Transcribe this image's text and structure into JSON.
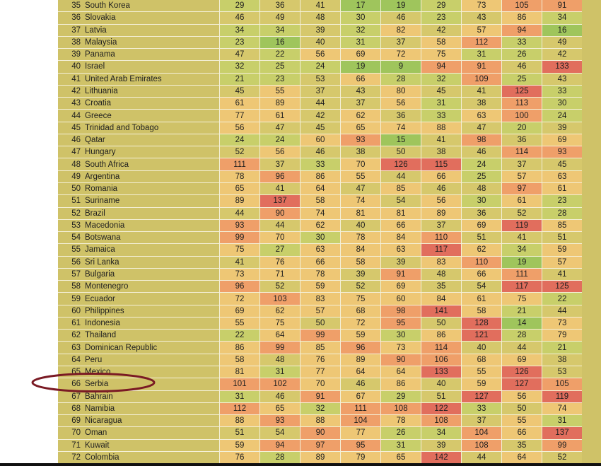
{
  "colors": {
    "low": "#9fc55c",
    "light": "#c8cf6a",
    "mid": "#d6c86c",
    "high": "#eec775",
    "higher": "#ef9f69",
    "top": "#e16e5d",
    "circle": "#7a1a24"
  },
  "rows": [
    {
      "rank": "35",
      "country": "South Korea",
      "values": [
        29,
        36,
        41,
        17,
        19,
        29,
        73,
        105,
        91
      ]
    },
    {
      "rank": "36",
      "country": "Slovakia",
      "values": [
        46,
        49,
        48,
        30,
        46,
        23,
        43,
        86,
        34
      ]
    },
    {
      "rank": "37",
      "country": "Latvia",
      "values": [
        34,
        34,
        39,
        32,
        82,
        42,
        57,
        94,
        16
      ]
    },
    {
      "rank": "38",
      "country": "Malaysia",
      "values": [
        23,
        16,
        40,
        31,
        37,
        58,
        112,
        33,
        49
      ]
    },
    {
      "rank": "39",
      "country": "Panama",
      "values": [
        47,
        22,
        56,
        69,
        72,
        75,
        31,
        26,
        42
      ]
    },
    {
      "rank": "40",
      "country": "Israel",
      "values": [
        32,
        25,
        24,
        19,
        9,
        94,
        91,
        46,
        133
      ]
    },
    {
      "rank": "41",
      "country": "United Arab Emirates",
      "values": [
        21,
        23,
        53,
        66,
        28,
        32,
        109,
        25,
        43
      ]
    },
    {
      "rank": "42",
      "country": "Lithuania",
      "values": [
        45,
        55,
        37,
        43,
        80,
        45,
        41,
        125,
        33
      ]
    },
    {
      "rank": "43",
      "country": "Croatia",
      "values": [
        61,
        89,
        44,
        37,
        56,
        31,
        38,
        113,
        30
      ]
    },
    {
      "rank": "44",
      "country": "Greece",
      "values": [
        77,
        61,
        42,
        62,
        36,
        33,
        63,
        100,
        24
      ]
    },
    {
      "rank": "45",
      "country": "Trinidad and Tobago",
      "values": [
        56,
        47,
        45,
        65,
        74,
        88,
        47,
        20,
        39
      ]
    },
    {
      "rank": "46",
      "country": "Qatar",
      "values": [
        24,
        24,
        60,
        93,
        15,
        41,
        98,
        36,
        69
      ]
    },
    {
      "rank": "47",
      "country": "Hungary",
      "values": [
        52,
        56,
        46,
        38,
        50,
        38,
        46,
        114,
        93
      ]
    },
    {
      "rank": "48",
      "country": "South Africa",
      "values": [
        111,
        37,
        33,
        70,
        126,
        115,
        24,
        37,
        45
      ]
    },
    {
      "rank": "49",
      "country": "Argentina",
      "values": [
        78,
        96,
        86,
        55,
        44,
        66,
        25,
        57,
        63
      ]
    },
    {
      "rank": "50",
      "country": "Romania",
      "values": [
        65,
        41,
        64,
        47,
        85,
        46,
        48,
        97,
        61
      ]
    },
    {
      "rank": "51",
      "country": "Suriname",
      "values": [
        89,
        137,
        58,
        74,
        54,
        56,
        30,
        61,
        23
      ]
    },
    {
      "rank": "52",
      "country": "Brazil",
      "values": [
        44,
        90,
        74,
        81,
        81,
        89,
        36,
        52,
        28
      ]
    },
    {
      "rank": "53",
      "country": "Macedonia",
      "values": [
        93,
        44,
        62,
        40,
        66,
        37,
        69,
        119,
        85
      ]
    },
    {
      "rank": "54",
      "country": "Botswana",
      "values": [
        99,
        70,
        30,
        78,
        84,
        110,
        51,
        41,
        51
      ]
    },
    {
      "rank": "55",
      "country": "Jamaica",
      "values": [
        75,
        27,
        63,
        84,
        63,
        117,
        62,
        34,
        59
      ]
    },
    {
      "rank": "56",
      "country": "Sri Lanka",
      "values": [
        41,
        76,
        66,
        58,
        39,
        83,
        110,
        19,
        57
      ]
    },
    {
      "rank": "57",
      "country": "Bulgaria",
      "values": [
        73,
        71,
        78,
        39,
        91,
        48,
        66,
        111,
        41
      ]
    },
    {
      "rank": "58",
      "country": "Montenegro",
      "values": [
        96,
        52,
        59,
        52,
        69,
        35,
        54,
        117,
        125
      ]
    },
    {
      "rank": "59",
      "country": "Ecuador",
      "values": [
        72,
        103,
        83,
        75,
        60,
        84,
        61,
        75,
        22
      ]
    },
    {
      "rank": "60",
      "country": "Philippines",
      "values": [
        69,
        62,
        57,
        68,
        98,
        141,
        58,
        21,
        44
      ]
    },
    {
      "rank": "61",
      "country": "Indonesia",
      "values": [
        55,
        75,
        50,
        72,
        95,
        50,
        128,
        14,
        73
      ]
    },
    {
      "rank": "62",
      "country": "Thailand",
      "values": [
        22,
        64,
        99,
        59,
        30,
        86,
        121,
        28,
        79
      ]
    },
    {
      "rank": "63",
      "country": "Dominican Republic",
      "values": [
        86,
        99,
        85,
        96,
        73,
        114,
        40,
        44,
        21
      ]
    },
    {
      "rank": "64",
      "country": "Peru",
      "values": [
        58,
        48,
        76,
        89,
        90,
        106,
        68,
        69,
        38
      ]
    },
    {
      "rank": "65",
      "country": "Mexico",
      "values": [
        81,
        31,
        77,
        64,
        64,
        133,
        55,
        126,
        53
      ]
    },
    {
      "rank": "66",
      "country": "Serbia",
      "values": [
        101,
        102,
        70,
        46,
        86,
        40,
        59,
        127,
        105
      ]
    },
    {
      "rank": "67",
      "country": "Bahrain",
      "values": [
        31,
        46,
        91,
        67,
        29,
        51,
        127,
        56,
        119
      ]
    },
    {
      "rank": "68",
      "country": "Namibia",
      "values": [
        112,
        65,
        32,
        111,
        108,
        122,
        33,
        50,
        74
      ]
    },
    {
      "rank": "69",
      "country": "Nicaragua",
      "values": [
        88,
        93,
        88,
        104,
        78,
        108,
        37,
        55,
        31
      ]
    },
    {
      "rank": "70",
      "country": "Oman",
      "values": [
        51,
        54,
        90,
        77,
        26,
        34,
        104,
        66,
        137
      ]
    },
    {
      "rank": "71",
      "country": "Kuwait",
      "values": [
        59,
        94,
        97,
        95,
        31,
        39,
        108,
        35,
        99
      ]
    },
    {
      "rank": "72",
      "country": "Colombia",
      "values": [
        76,
        28,
        89,
        79,
        65,
        142,
        44,
        64,
        52
      ]
    }
  ]
}
